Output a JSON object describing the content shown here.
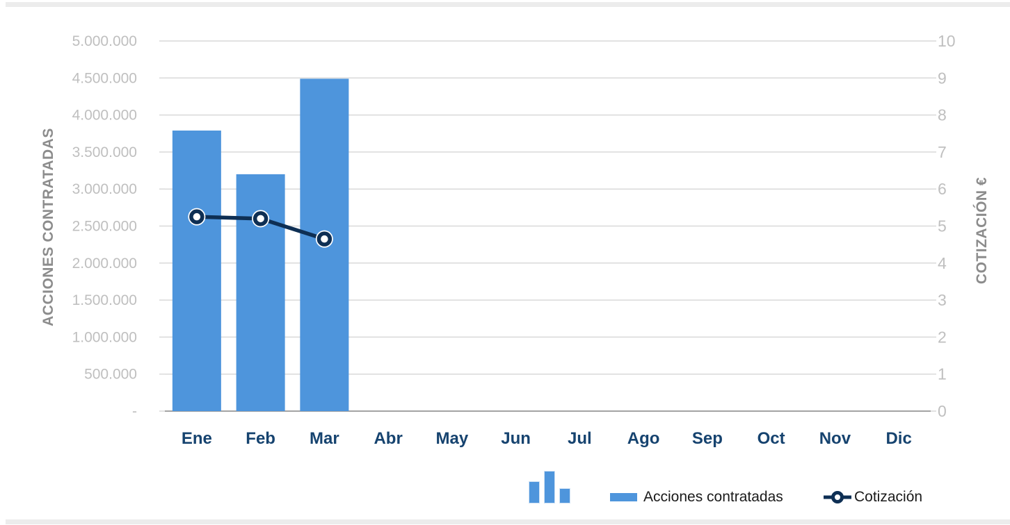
{
  "colors": {
    "bar": "#4e95dc",
    "line": "#0e2f54",
    "grid": "#d9d9d9",
    "axis_line": "#a3a3a3",
    "tick_label": "#bfbfbf",
    "axis_title": "#8c8c8c",
    "month_label": "#16436f",
    "legend_text": "#1a1a1a",
    "strip": "#ececec"
  },
  "chart_data": {
    "type": "combo",
    "title": "",
    "categories": [
      "Ene",
      "Feb",
      "Mar",
      "Abr",
      "May",
      "Jun",
      "Jul",
      "Ago",
      "Sep",
      "Oct",
      "Nov",
      "Dic"
    ],
    "series": [
      {
        "name": "Acciones contratadas",
        "type": "bar",
        "axis": "left",
        "color": "#4e95dc",
        "values": [
          3790000,
          3200000,
          4490000,
          null,
          null,
          null,
          null,
          null,
          null,
          null,
          null,
          null
        ]
      },
      {
        "name": "Cotización",
        "type": "line",
        "axis": "right",
        "color": "#0e2f54",
        "values": [
          5.25,
          5.2,
          4.65,
          null,
          null,
          null,
          null,
          null,
          null,
          null,
          null,
          null
        ]
      }
    ],
    "left_axis": {
      "title": "ACCIONES CONTRATADAS",
      "min": 0,
      "max": 5000000,
      "tick_labels": [
        "-",
        "500.000",
        "1.000.000",
        "1.500.000",
        "2.000.000",
        "2.500.000",
        "3.000.000",
        "3.500.000",
        "4.000.000",
        "4.500.000",
        "5.000.000"
      ]
    },
    "right_axis": {
      "title": "COTIZACIÓN €",
      "min": 0,
      "max": 10,
      "tick_labels": [
        "0",
        "1",
        "2",
        "3",
        "4",
        "5",
        "6",
        "7",
        "8",
        "9",
        "10"
      ]
    },
    "grid": true,
    "legend_position": "bottom-right"
  },
  "legend": {
    "items": [
      {
        "label": "Acciones contratadas",
        "swatch": "bar"
      },
      {
        "label": "Cotización",
        "swatch": "line-marker"
      }
    ]
  }
}
